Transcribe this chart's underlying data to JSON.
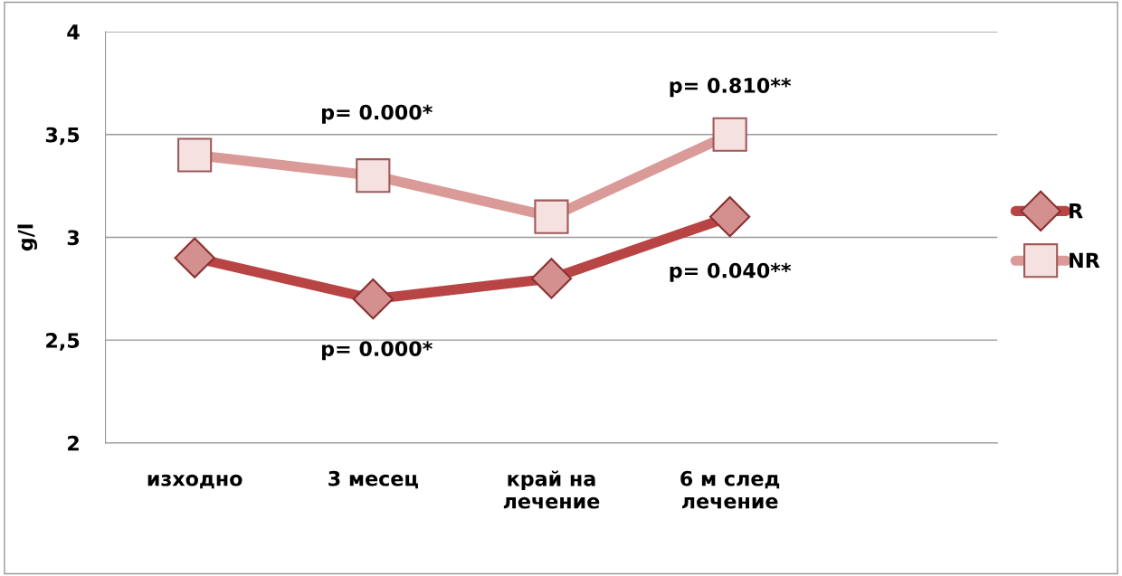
{
  "chart_data": {
    "type": "line",
    "ylabel": "g/l",
    "categories": [
      "изходно",
      "3 месец",
      "край на\nлечение",
      "6 м след\nлечение",
      null
    ],
    "series": [
      {
        "name": "R",
        "color": "#b84444",
        "marker": "diamond",
        "values": [
          2.9,
          2.7,
          2.8,
          3.1,
          null
        ]
      },
      {
        "name": "NR",
        "color": "#d99a98",
        "marker": "square",
        "values": [
          3.4,
          3.3,
          3.1,
          3.5,
          null
        ]
      }
    ],
    "ylim": [
      2,
      4
    ],
    "yticks": [
      2,
      {
        "value": 2.5,
        "label": "2,5"
      },
      3,
      {
        "value": 3.5,
        "label": "3,5"
      },
      4
    ],
    "grid": "y",
    "legend": "right",
    "line_style": "solid",
    "annotations": [
      "p= 0.000*",
      "p= 0.000*",
      "p= 0.810**",
      "p= 0.040**"
    ]
  }
}
